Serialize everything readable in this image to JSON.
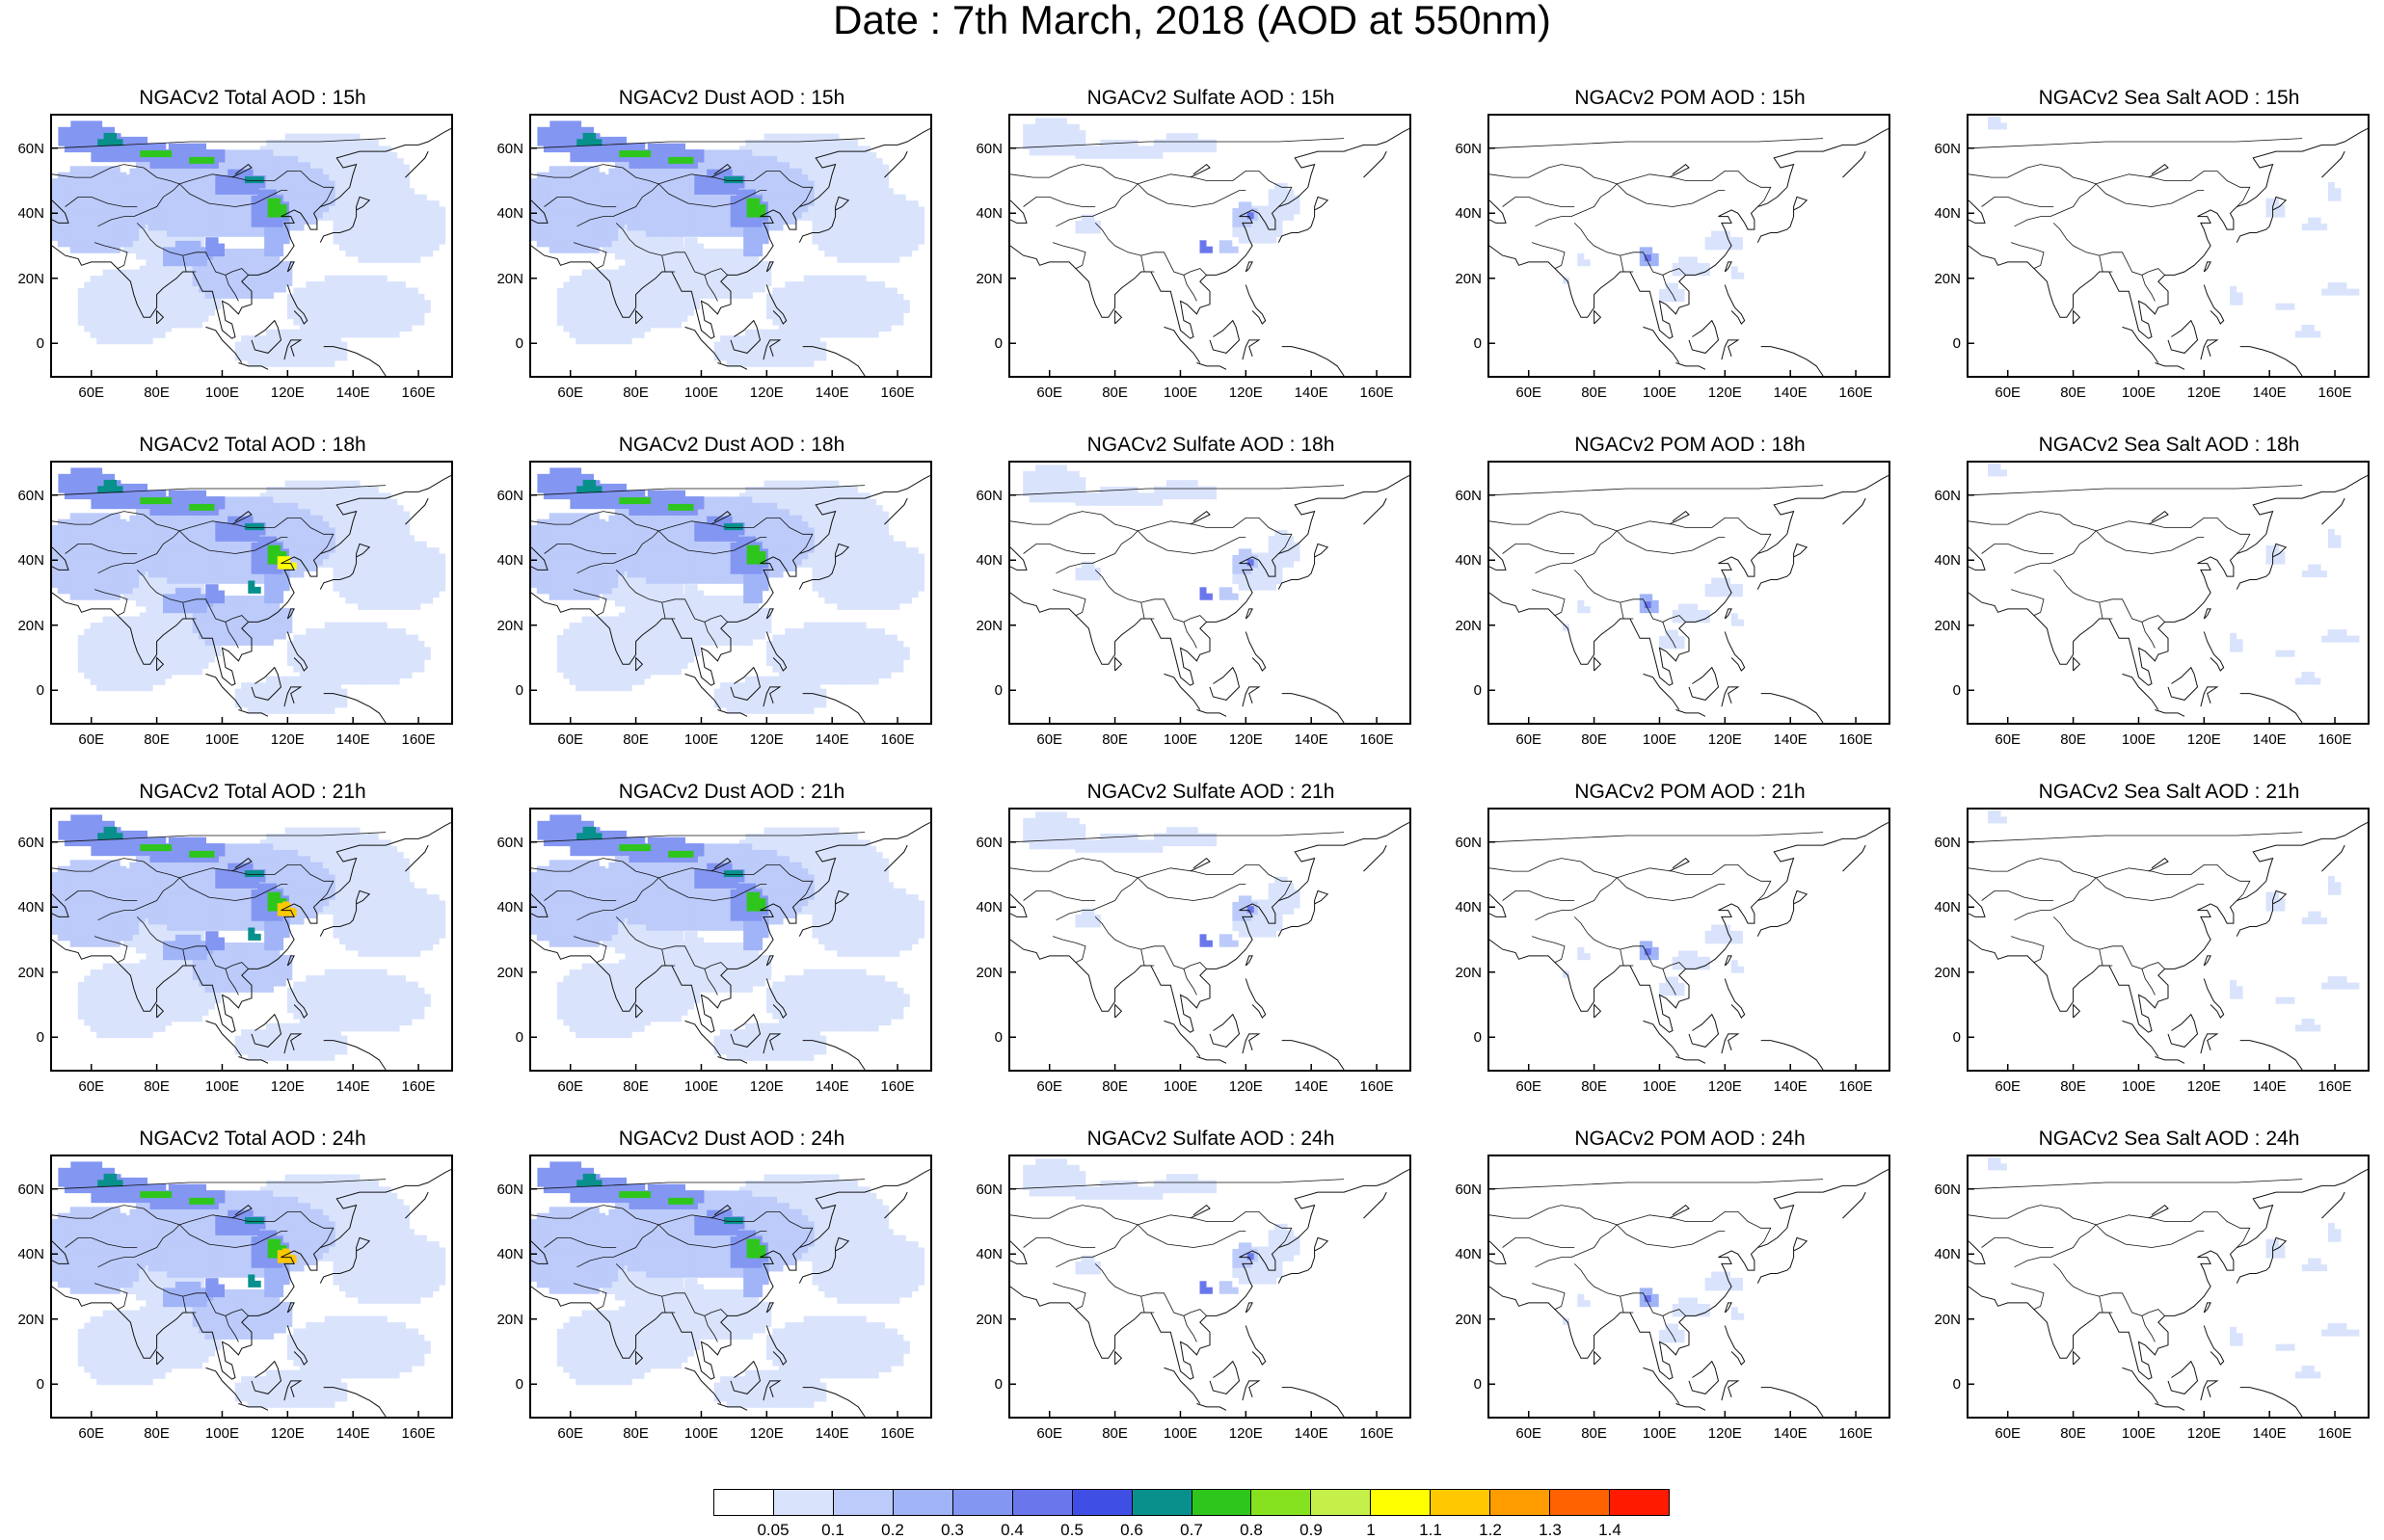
{
  "title": "Date : 7th March, 2018 (AOD at 550nm)",
  "rows": [
    "15h",
    "18h",
    "21h",
    "24h"
  ],
  "species": [
    {
      "key": "total",
      "title_prefix": "NGACv2 Total AOD : "
    },
    {
      "key": "dust",
      "title_prefix": "NGACv2 Dust AOD : "
    },
    {
      "key": "sulfate",
      "title_prefix": "NGACv2 Sulfate AOD : "
    },
    {
      "key": "pom",
      "title_prefix": "NGACv2 POM AOD : "
    },
    {
      "key": "seasalt",
      "title_prefix": "NGACv2 Sea Salt AOD : "
    }
  ],
  "panel_titles": [
    [
      "NGACv2 Total AOD : 15h",
      "NGACv2 Dust AOD : 15h",
      "NGACv2 Sulfate AOD : 15h",
      "NGACv2 POM AOD : 15h",
      "NGACv2 Sea Salt AOD : 15h"
    ],
    [
      "NGACv2 Total AOD : 18h",
      "NGACv2 Dust AOD : 18h",
      "NGACv2 Sulfate AOD : 18h",
      "NGACv2 POM AOD : 18h",
      "NGACv2 Sea Salt AOD : 18h"
    ],
    [
      "NGACv2 Total AOD : 21h",
      "NGACv2 Dust AOD : 21h",
      "NGACv2 Sulfate AOD : 21h",
      "NGACv2 POM AOD : 21h",
      "NGACv2 Sea Salt AOD : 21h"
    ],
    [
      "NGACv2 Total AOD : 24h",
      "NGACv2 Dust AOD : 24h",
      "NGACv2 Sulfate AOD : 24h",
      "NGACv2 POM AOD : 24h",
      "NGACv2 Sea Salt  AOD : 24h"
    ]
  ],
  "lat_ticks": [
    "60N",
    "40N",
    "20N",
    "0"
  ],
  "lat_values": [
    60,
    40,
    20,
    0
  ],
  "lon_ticks": [
    "60E",
    "80E",
    "100E",
    "120E",
    "140E",
    "160E"
  ],
  "lon_values": [
    60,
    80,
    100,
    120,
    140,
    160
  ],
  "lon_range": [
    48,
    170
  ],
  "lat_range": [
    -10,
    70
  ],
  "colorbar": {
    "labels": [
      "0.05",
      "0.1",
      "0.2",
      "0.3",
      "0.4",
      "0.5",
      "0.6",
      "0.7",
      "0.8",
      "0.9",
      "1",
      "1.1",
      "1.2",
      "1.3",
      "1.4"
    ],
    "colors": [
      "#ffffff",
      "#d9e3fc",
      "#bccbfa",
      "#a0b4f7",
      "#8396f2",
      "#6a77ec",
      "#3f4fe6",
      "#08908c",
      "#2ec61c",
      "#86e21e",
      "#c5f04a",
      "#ffff00",
      "#ffc800",
      "#ff9c00",
      "#ff6200",
      "#ff1a00"
    ]
  }
}
